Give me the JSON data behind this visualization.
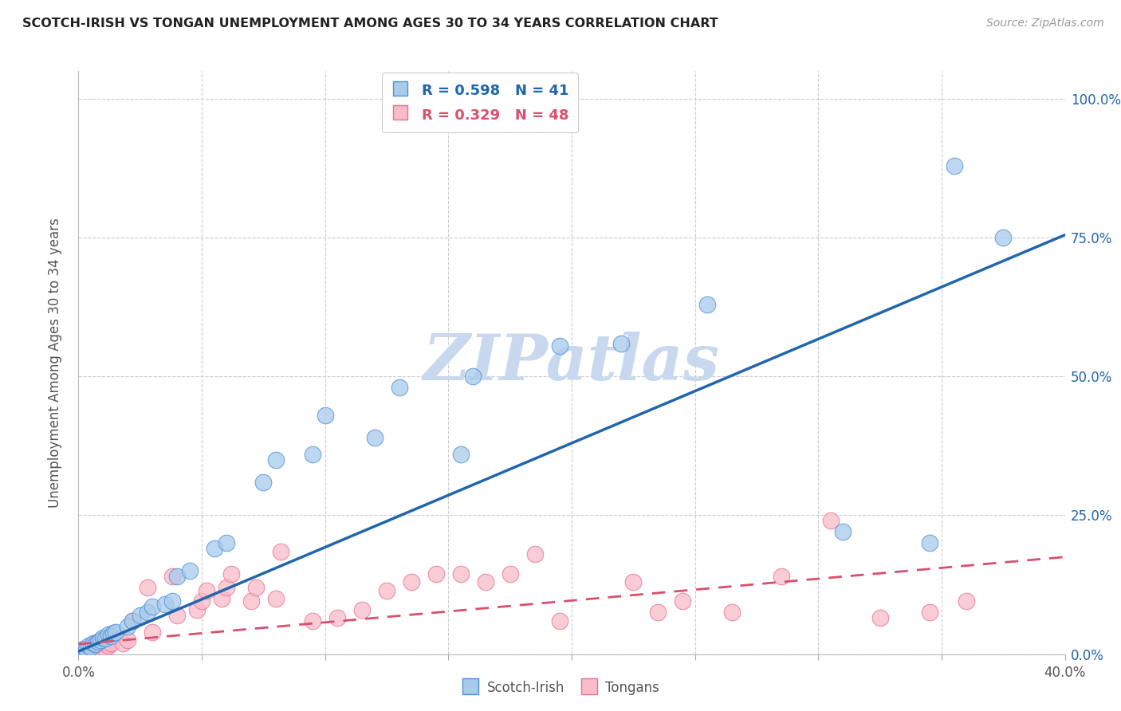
{
  "title": "SCOTCH-IRISH VS TONGAN UNEMPLOYMENT AMONG AGES 30 TO 34 YEARS CORRELATION CHART",
  "source": "Source: ZipAtlas.com",
  "ylabel": "Unemployment Among Ages 30 to 34 years",
  "ytick_labels": [
    "0.0%",
    "25.0%",
    "50.0%",
    "75.0%",
    "100.0%"
  ],
  "ytick_values": [
    0.0,
    0.25,
    0.5,
    0.75,
    1.0
  ],
  "xmin": 0.0,
  "xmax": 0.4,
  "ymin": 0.0,
  "ymax": 1.05,
  "blue_color": "#a8caeb",
  "blue_edge_color": "#4a90d9",
  "blue_line_color": "#2166ac",
  "pink_color": "#f9bcc8",
  "pink_edge_color": "#e87090",
  "pink_line_color": "#d94f6e",
  "watermark_text": "ZIPatlas",
  "watermark_color": "#c8d8ee",
  "scotch_irish_x": [
    0.001,
    0.002,
    0.003,
    0.004,
    0.005,
    0.006,
    0.007,
    0.008,
    0.009,
    0.01,
    0.011,
    0.012,
    0.013,
    0.014,
    0.015,
    0.02,
    0.022,
    0.025,
    0.028,
    0.03,
    0.035,
    0.038,
    0.04,
    0.045,
    0.055,
    0.06,
    0.075,
    0.08,
    0.095,
    0.1,
    0.12,
    0.13,
    0.155,
    0.16,
    0.195,
    0.22,
    0.255,
    0.31,
    0.345,
    0.355,
    0.375
  ],
  "scotch_irish_y": [
    0.005,
    0.01,
    0.008,
    0.015,
    0.012,
    0.02,
    0.018,
    0.022,
    0.025,
    0.03,
    0.028,
    0.035,
    0.032,
    0.038,
    0.04,
    0.05,
    0.06,
    0.07,
    0.075,
    0.085,
    0.09,
    0.095,
    0.14,
    0.15,
    0.19,
    0.2,
    0.31,
    0.35,
    0.36,
    0.43,
    0.39,
    0.48,
    0.36,
    0.5,
    0.555,
    0.56,
    0.63,
    0.22,
    0.2,
    0.88,
    0.75
  ],
  "tongan_x": [
    0.001,
    0.002,
    0.003,
    0.004,
    0.005,
    0.006,
    0.007,
    0.01,
    0.011,
    0.012,
    0.013,
    0.018,
    0.02,
    0.022,
    0.028,
    0.03,
    0.038,
    0.04,
    0.048,
    0.05,
    0.052,
    0.058,
    0.06,
    0.062,
    0.07,
    0.072,
    0.08,
    0.082,
    0.095,
    0.105,
    0.115,
    0.125,
    0.135,
    0.145,
    0.155,
    0.165,
    0.175,
    0.185,
    0.195,
    0.225,
    0.235,
    0.245,
    0.265,
    0.285,
    0.305,
    0.325,
    0.345,
    0.36
  ],
  "tongan_y": [
    0.005,
    0.008,
    0.01,
    0.012,
    0.015,
    0.018,
    0.02,
    0.005,
    0.01,
    0.015,
    0.02,
    0.02,
    0.025,
    0.06,
    0.12,
    0.04,
    0.14,
    0.07,
    0.08,
    0.095,
    0.115,
    0.1,
    0.12,
    0.145,
    0.095,
    0.12,
    0.1,
    0.185,
    0.06,
    0.065,
    0.08,
    0.115,
    0.13,
    0.145,
    0.145,
    0.13,
    0.145,
    0.18,
    0.06,
    0.13,
    0.075,
    0.095,
    0.075,
    0.14,
    0.24,
    0.065,
    0.075,
    0.095
  ],
  "blue_line_x0": 0.0,
  "blue_line_x1": 0.4,
  "blue_line_y0": 0.005,
  "blue_line_y1": 0.755,
  "pink_line_x0": 0.0,
  "pink_line_x1": 0.4,
  "pink_line_y0": 0.018,
  "pink_line_y1": 0.175
}
